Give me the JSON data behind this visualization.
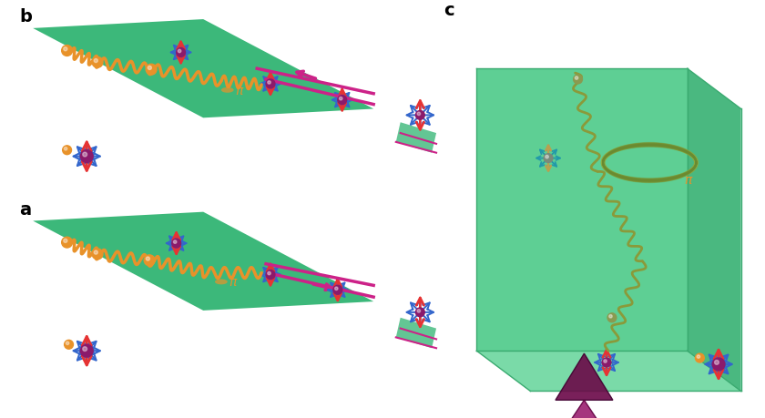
{
  "bg_color": "#ffffff",
  "green_surface": "#3cb87a",
  "green_surface_light": "#5ecf94",
  "green_box": "#5ecf94",
  "green_box_dark": "#3cb87a",
  "green_box_side": "#4abf85",
  "arrow_blue": "#3366cc",
  "arrow_red": "#e63333",
  "arrow_magenta": "#cc2288",
  "arrow_teal": "#2299aa",
  "electron_orange": "#e8922a",
  "electron_purple": "#8b1a6b",
  "electron_gray": "#7a9a7a",
  "wavy_orange": "#e8922a",
  "wavy_olive": "#8a9a3a",
  "pi_color": "#e8922a",
  "cone_color": "#7a1060",
  "ring_color": "#7a9a3a",
  "label_color": "#111111",
  "panel_a_label": "a",
  "panel_b_label": "b",
  "panel_c_label": "c"
}
